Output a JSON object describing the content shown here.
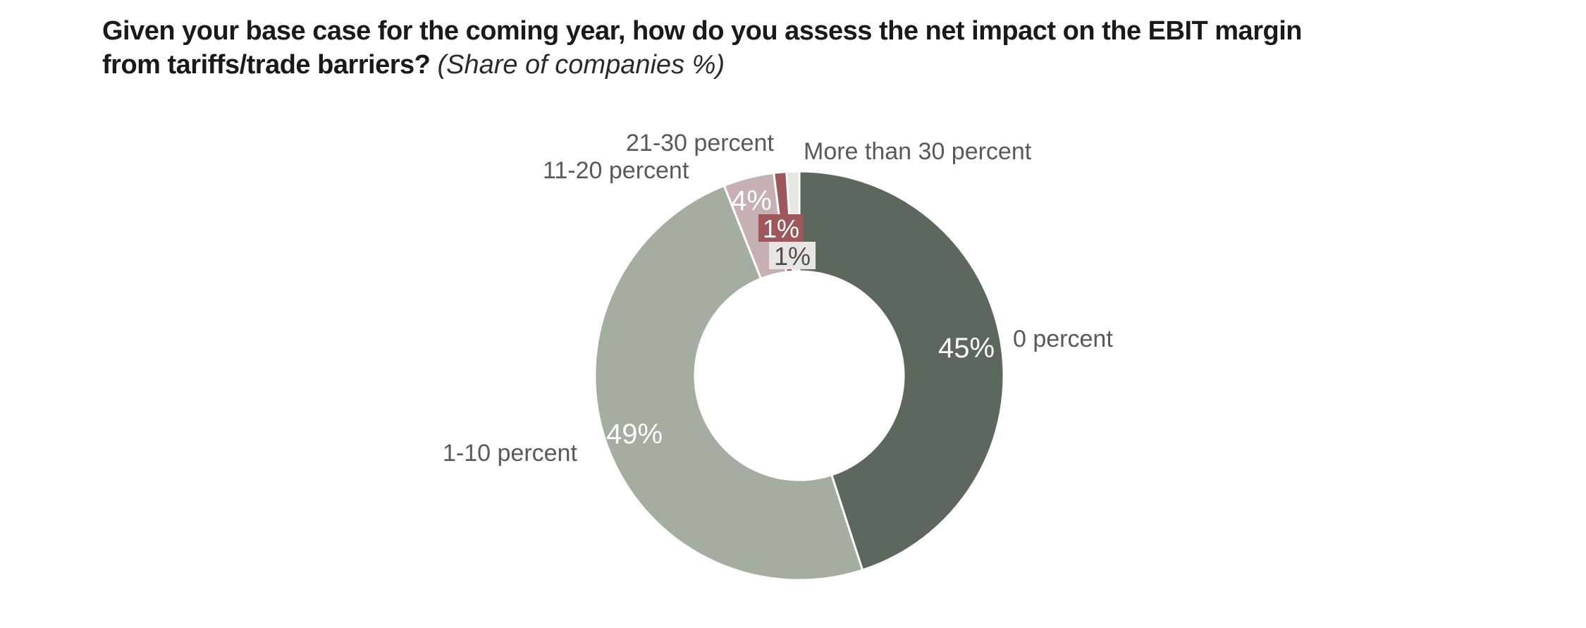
{
  "page": {
    "background": "#ffffff"
  },
  "title": {
    "line1": "Given your base case for the coming year, how do you assess the net impact on the EBIT margin",
    "line2": "from tariffs/trade barriers?",
    "subtitle": "(Share of companies %)"
  },
  "styles": {
    "title_color": "#1a1a1a",
    "category_label_color": "#595959",
    "value_label_color": "#ffffff",
    "chip_dark_text_color": "#4f4f4f",
    "separator_color": "#ffffff"
  },
  "chart_data": {
    "type": "pie",
    "variant": "donut",
    "title": "Given your base case for the coming year, how do you assess the net impact on the EBIT margin from tariffs/trade barriers?",
    "subtitle": "(Share of companies %)",
    "unit": "%",
    "start_angle_deg": 0,
    "direction": "clockwise",
    "legend_position": "outside-labels",
    "slices": [
      {
        "name": "0 percent",
        "value": 45,
        "value_label": "45%",
        "color": "#5d685d"
      },
      {
        "name": "1-10 percent",
        "value": 49,
        "value_label": "49%",
        "color": "#a3ada0"
      },
      {
        "name": "11-20 percent",
        "value": 4,
        "value_label": "4%",
        "color": "#c6b0b3"
      },
      {
        "name": "21-30 percent",
        "value": 1,
        "value_label": "1%",
        "color": "#9e585c"
      },
      {
        "name": "More than 30 percent",
        "value": 1,
        "value_label": "1%",
        "color": "#e8e5e5"
      }
    ]
  }
}
